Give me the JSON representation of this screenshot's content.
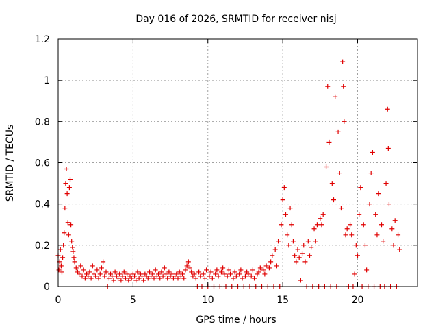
{
  "chart_data": {
    "type": "scatter",
    "title": "Day 016 of 2026, SRMTID for receiver nisj",
    "xlabel": "GPS time / hours",
    "ylabel": "SRMTID / TECUs",
    "xlim": [
      0,
      24
    ],
    "ylim": [
      0,
      1.2
    ],
    "x_ticks": [
      0,
      5,
      10,
      15,
      20
    ],
    "y_ticks": [
      0,
      0.2,
      0.4,
      0.6,
      0.8,
      1,
      1.2
    ],
    "x_tick_labels": [
      "0",
      "5",
      "10",
      "15",
      "20"
    ],
    "y_tick_labels": [
      "0",
      "0.2",
      "0.4",
      "0.6",
      "0.8",
      "1",
      "1.2"
    ],
    "grid": true,
    "marker": "+",
    "color": "#e00000",
    "series": [
      {
        "name": "SRMTID",
        "points": [
          [
            0.0,
            0.15
          ],
          [
            0.05,
            0.08
          ],
          [
            0.1,
            0.12
          ],
          [
            0.15,
            0.18
          ],
          [
            0.2,
            0.1
          ],
          [
            0.25,
            0.07
          ],
          [
            0.3,
            0.14
          ],
          [
            0.35,
            0.2
          ],
          [
            0.4,
            0.26
          ],
          [
            0.45,
            0.38
          ],
          [
            0.5,
            0.5
          ],
          [
            0.55,
            0.57
          ],
          [
            0.6,
            0.45
          ],
          [
            0.65,
            0.31
          ],
          [
            0.7,
            0.25
          ],
          [
            0.75,
            0.48
          ],
          [
            0.8,
            0.52
          ],
          [
            0.85,
            0.3
          ],
          [
            0.9,
            0.22
          ],
          [
            0.95,
            0.19
          ],
          [
            1.0,
            0.17
          ],
          [
            1.05,
            0.14
          ],
          [
            1.1,
            0.12
          ],
          [
            1.2,
            0.09
          ],
          [
            1.3,
            0.07
          ],
          [
            1.4,
            0.06
          ],
          [
            1.5,
            0.1
          ],
          [
            1.6,
            0.05
          ],
          [
            1.7,
            0.08
          ],
          [
            1.8,
            0.04
          ],
          [
            1.9,
            0.06
          ],
          [
            2.0,
            0.05
          ],
          [
            2.1,
            0.07
          ],
          [
            2.2,
            0.04
          ],
          [
            2.3,
            0.1
          ],
          [
            2.4,
            0.06
          ],
          [
            2.5,
            0.05
          ],
          [
            2.6,
            0.08
          ],
          [
            2.7,
            0.04
          ],
          [
            2.8,
            0.06
          ],
          [
            2.9,
            0.09
          ],
          [
            3.0,
            0.12
          ],
          [
            3.1,
            0.05
          ],
          [
            3.2,
            0.07
          ],
          [
            3.3,
            0.0
          ],
          [
            3.4,
            0.04
          ],
          [
            3.5,
            0.06
          ],
          [
            3.6,
            0.05
          ],
          [
            3.7,
            0.03
          ],
          [
            3.8,
            0.07
          ],
          [
            3.9,
            0.05
          ],
          [
            4.0,
            0.04
          ],
          [
            4.1,
            0.06
          ],
          [
            4.2,
            0.03
          ],
          [
            4.3,
            0.05
          ],
          [
            4.4,
            0.07
          ],
          [
            4.5,
            0.04
          ],
          [
            4.6,
            0.06
          ],
          [
            4.7,
            0.03
          ],
          [
            4.8,
            0.05
          ],
          [
            4.9,
            0.04
          ],
          [
            5.0,
            0.06
          ],
          [
            5.1,
            0.05
          ],
          [
            5.2,
            0.03
          ],
          [
            5.3,
            0.07
          ],
          [
            5.4,
            0.04
          ],
          [
            5.5,
            0.06
          ],
          [
            5.6,
            0.05
          ],
          [
            5.7,
            0.03
          ],
          [
            5.8,
            0.06
          ],
          [
            5.9,
            0.05
          ],
          [
            6.0,
            0.04
          ],
          [
            6.1,
            0.07
          ],
          [
            6.2,
            0.05
          ],
          [
            6.3,
            0.06
          ],
          [
            6.4,
            0.04
          ],
          [
            6.5,
            0.08
          ],
          [
            6.6,
            0.05
          ],
          [
            6.7,
            0.06
          ],
          [
            6.8,
            0.04
          ],
          [
            6.9,
            0.07
          ],
          [
            7.0,
            0.05
          ],
          [
            7.1,
            0.09
          ],
          [
            7.2,
            0.06
          ],
          [
            7.3,
            0.04
          ],
          [
            7.4,
            0.07
          ],
          [
            7.5,
            0.05
          ],
          [
            7.6,
            0.06
          ],
          [
            7.7,
            0.04
          ],
          [
            7.8,
            0.05
          ],
          [
            7.9,
            0.06
          ],
          [
            8.0,
            0.04
          ],
          [
            8.1,
            0.07
          ],
          [
            8.2,
            0.05
          ],
          [
            8.3,
            0.06
          ],
          [
            8.4,
            0.04
          ],
          [
            8.5,
            0.08
          ],
          [
            8.6,
            0.1
          ],
          [
            8.7,
            0.12
          ],
          [
            8.8,
            0.09
          ],
          [
            8.9,
            0.07
          ],
          [
            9.0,
            0.05
          ],
          [
            9.1,
            0.06
          ],
          [
            9.2,
            0.04
          ],
          [
            9.3,
            0.0
          ],
          [
            9.4,
            0.07
          ],
          [
            9.5,
            0.05
          ],
          [
            9.6,
            0.0
          ],
          [
            9.7,
            0.06
          ],
          [
            9.8,
            0.04
          ],
          [
            9.9,
            0.08
          ],
          [
            10.0,
            0.0
          ],
          [
            10.1,
            0.05
          ],
          [
            10.2,
            0.07
          ],
          [
            10.3,
            0.04
          ],
          [
            10.4,
            0.0
          ],
          [
            10.5,
            0.06
          ],
          [
            10.6,
            0.08
          ],
          [
            10.7,
            0.05
          ],
          [
            10.8,
            0.0
          ],
          [
            10.9,
            0.07
          ],
          [
            11.0,
            0.09
          ],
          [
            11.1,
            0.06
          ],
          [
            11.2,
            0.0
          ],
          [
            11.3,
            0.05
          ],
          [
            11.4,
            0.08
          ],
          [
            11.5,
            0.06
          ],
          [
            11.6,
            0.0
          ],
          [
            11.7,
            0.04
          ],
          [
            11.8,
            0.07
          ],
          [
            11.9,
            0.05
          ],
          [
            12.0,
            0.0
          ],
          [
            12.1,
            0.06
          ],
          [
            12.2,
            0.08
          ],
          [
            12.3,
            0.04
          ],
          [
            12.4,
            0.0
          ],
          [
            12.5,
            0.05
          ],
          [
            12.6,
            0.07
          ],
          [
            12.7,
            0.06
          ],
          [
            12.8,
            0.0
          ],
          [
            12.9,
            0.05
          ],
          [
            13.0,
            0.08
          ],
          [
            13.1,
            0.04
          ],
          [
            13.2,
            0.0
          ],
          [
            13.3,
            0.06
          ],
          [
            13.4,
            0.07
          ],
          [
            13.5,
            0.09
          ],
          [
            13.6,
            0.0
          ],
          [
            13.7,
            0.08
          ],
          [
            13.8,
            0.06
          ],
          [
            13.9,
            0.1
          ],
          [
            14.0,
            0.0
          ],
          [
            14.1,
            0.09
          ],
          [
            14.2,
            0.12
          ],
          [
            14.3,
            0.15
          ],
          [
            14.4,
            0.0
          ],
          [
            14.5,
            0.18
          ],
          [
            14.6,
            0.1
          ],
          [
            14.7,
            0.22
          ],
          [
            14.8,
            0.0
          ],
          [
            14.9,
            0.3
          ],
          [
            15.0,
            0.42
          ],
          [
            15.1,
            0.48
          ],
          [
            15.2,
            0.35
          ],
          [
            15.3,
            0.25
          ],
          [
            15.4,
            0.2
          ],
          [
            15.5,
            0.38
          ],
          [
            15.6,
            0.3
          ],
          [
            15.7,
            0.22
          ],
          [
            15.8,
            0.15
          ],
          [
            15.9,
            0.12
          ],
          [
            16.0,
            0.18
          ],
          [
            16.1,
            0.14
          ],
          [
            16.2,
            0.03
          ],
          [
            16.3,
            0.16
          ],
          [
            16.4,
            0.2
          ],
          [
            16.5,
            0.12
          ],
          [
            16.6,
            0.0
          ],
          [
            16.7,
            0.22
          ],
          [
            16.8,
            0.15
          ],
          [
            16.9,
            0.19
          ],
          [
            17.0,
            0.0
          ],
          [
            17.1,
            0.28
          ],
          [
            17.2,
            0.22
          ],
          [
            17.3,
            0.3
          ],
          [
            17.4,
            0.0
          ],
          [
            17.5,
            0.33
          ],
          [
            17.6,
            0.3
          ],
          [
            17.7,
            0.35
          ],
          [
            17.8,
            0.0
          ],
          [
            17.9,
            0.58
          ],
          [
            18.0,
            0.97
          ],
          [
            18.1,
            0.7
          ],
          [
            18.2,
            0.0
          ],
          [
            18.3,
            0.5
          ],
          [
            18.4,
            0.42
          ],
          [
            18.5,
            0.92
          ],
          [
            18.6,
            0.0
          ],
          [
            18.7,
            0.75
          ],
          [
            18.8,
            0.55
          ],
          [
            18.9,
            0.38
          ],
          [
            19.0,
            1.09
          ],
          [
            19.05,
            0.97
          ],
          [
            19.1,
            0.8
          ],
          [
            19.2,
            0.25
          ],
          [
            19.3,
            0.28
          ],
          [
            19.4,
            0.0
          ],
          [
            19.5,
            0.3
          ],
          [
            19.6,
            0.25
          ],
          [
            19.7,
            0.0
          ],
          [
            19.8,
            0.06
          ],
          [
            19.9,
            0.2
          ],
          [
            20.0,
            0.15
          ],
          [
            20.1,
            0.35
          ],
          [
            20.2,
            0.48
          ],
          [
            20.3,
            0.0
          ],
          [
            20.4,
            0.3
          ],
          [
            20.5,
            0.2
          ],
          [
            20.6,
            0.08
          ],
          [
            20.7,
            0.0
          ],
          [
            20.8,
            0.4
          ],
          [
            20.9,
            0.55
          ],
          [
            21.0,
            0.65
          ],
          [
            21.1,
            0.0
          ],
          [
            21.2,
            0.35
          ],
          [
            21.3,
            0.25
          ],
          [
            21.4,
            0.45
          ],
          [
            21.5,
            0.0
          ],
          [
            21.6,
            0.3
          ],
          [
            21.7,
            0.22
          ],
          [
            21.8,
            0.0
          ],
          [
            21.9,
            0.5
          ],
          [
            22.0,
            0.86
          ],
          [
            22.05,
            0.67
          ],
          [
            22.1,
            0.4
          ],
          [
            22.2,
            0.0
          ],
          [
            22.3,
            0.28
          ],
          [
            22.4,
            0.2
          ],
          [
            22.5,
            0.32
          ],
          [
            22.6,
            0.0
          ],
          [
            22.7,
            0.25
          ],
          [
            22.8,
            0.18
          ]
        ]
      }
    ]
  }
}
